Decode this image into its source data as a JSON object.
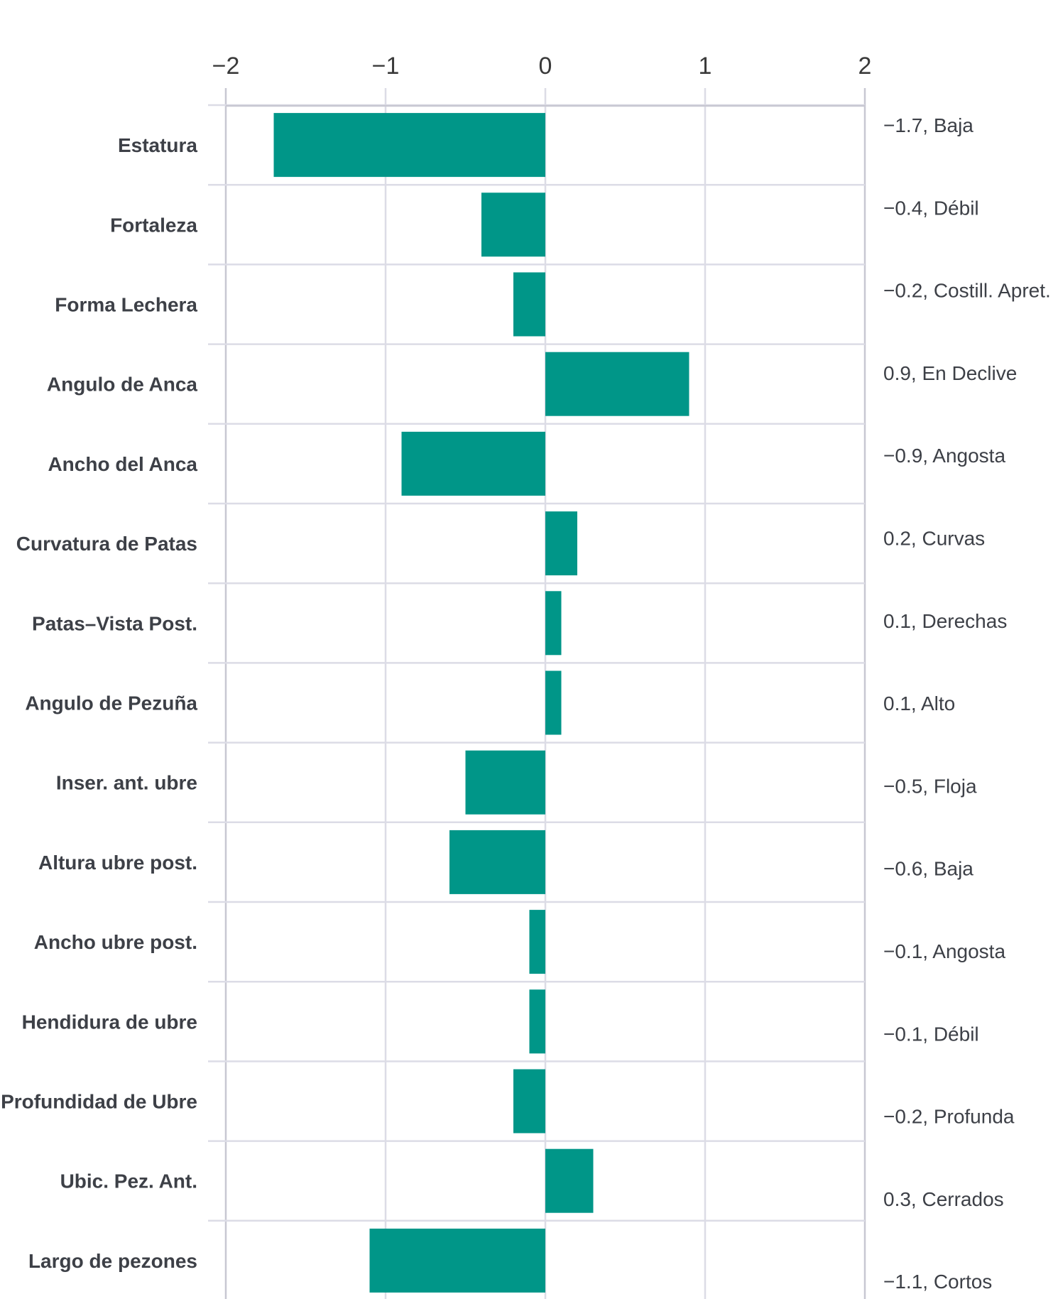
{
  "chart_data": {
    "type": "bar",
    "orientation": "horizontal",
    "title": "",
    "xlabel": "",
    "ylabel": "",
    "xlim": [
      -2,
      2
    ],
    "xticks": [
      -2,
      -1,
      0,
      1,
      2
    ],
    "xtick_labels": [
      "−2",
      "−1",
      "0",
      "1",
      "2"
    ],
    "grid": true,
    "bar_color": "#009688",
    "categories": [
      "Estatura",
      "Fortaleza",
      "Forma Lechera",
      "Angulo de Anca",
      "Ancho del Anca",
      "Curvatura de Patas",
      "Patas–Vista Post.",
      "Angulo de Pezuña",
      "Inser. ant. ubre",
      "Altura ubre post.",
      "Ancho ubre post.",
      "Hendidura de ubre",
      "Profundidad de Ubre",
      "Ubic. Pez. Ant.",
      "Largo de pezones"
    ],
    "values": [
      -1.7,
      -0.4,
      -0.2,
      0.9,
      -0.9,
      0.2,
      0.1,
      0.1,
      -0.5,
      -0.6,
      -0.1,
      -0.1,
      -0.2,
      0.3,
      -1.1
    ],
    "value_labels": [
      "−1.7, Baja",
      "−0.4, Débil",
      "−0.2, Costill. Apret.",
      "0.9, En Declive",
      "−0.9, Angosta",
      "0.2, Curvas",
      "0.1, Derechas",
      "0.1, Alto",
      "−0.5, Floja",
      "−0.6, Baja",
      "−0.1, Angosta",
      "−0.1, Débil",
      "−0.2, Profunda",
      "0.3, Cerrados",
      "−1.1, Cortos"
    ]
  }
}
